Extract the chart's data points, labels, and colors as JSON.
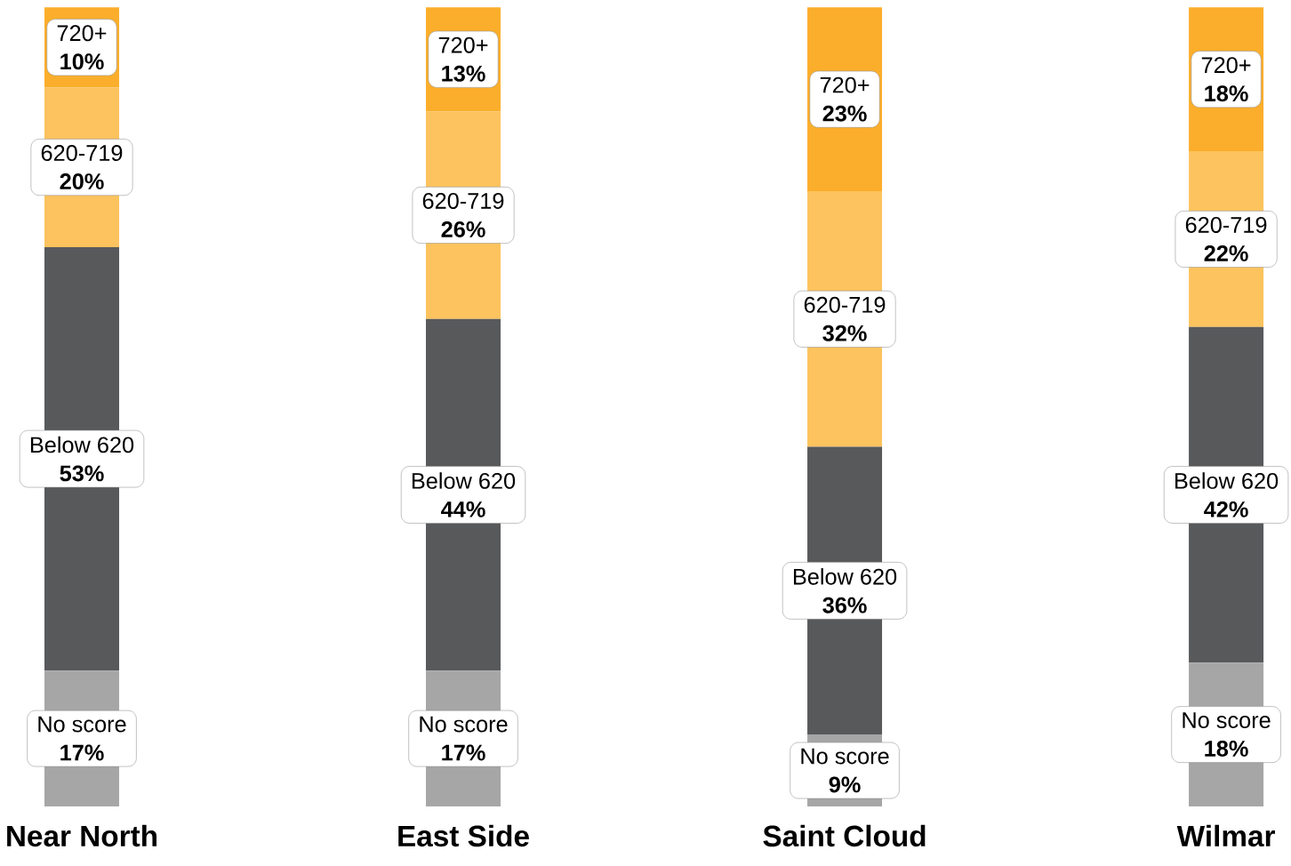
{
  "chart_data": {
    "type": "bar",
    "stacked": true,
    "categories": [
      "Near North",
      "East Side",
      "Saint Cloud",
      "Wilmar"
    ],
    "series": [
      {
        "name": "No score",
        "color": "#a6a6a6",
        "values": [
          17,
          17,
          9,
          18
        ],
        "value_labels": [
          "17%",
          "17%",
          "9%",
          "18%"
        ]
      },
      {
        "name": "Below 620",
        "color": "#58595b",
        "values": [
          53,
          44,
          36,
          42
        ],
        "value_labels": [
          "53%",
          "44%",
          "36%",
          "42%"
        ]
      },
      {
        "name": "620-719",
        "color": "#fcc35e",
        "values": [
          20,
          26,
          32,
          22
        ],
        "value_labels": [
          "20%",
          "26%",
          "32%",
          "22%"
        ]
      },
      {
        "name": "720+",
        "color": "#fbae2b",
        "values": [
          10,
          13,
          23,
          18
        ],
        "value_labels": [
          "10%",
          "13%",
          "23%",
          "18%"
        ]
      }
    ]
  }
}
